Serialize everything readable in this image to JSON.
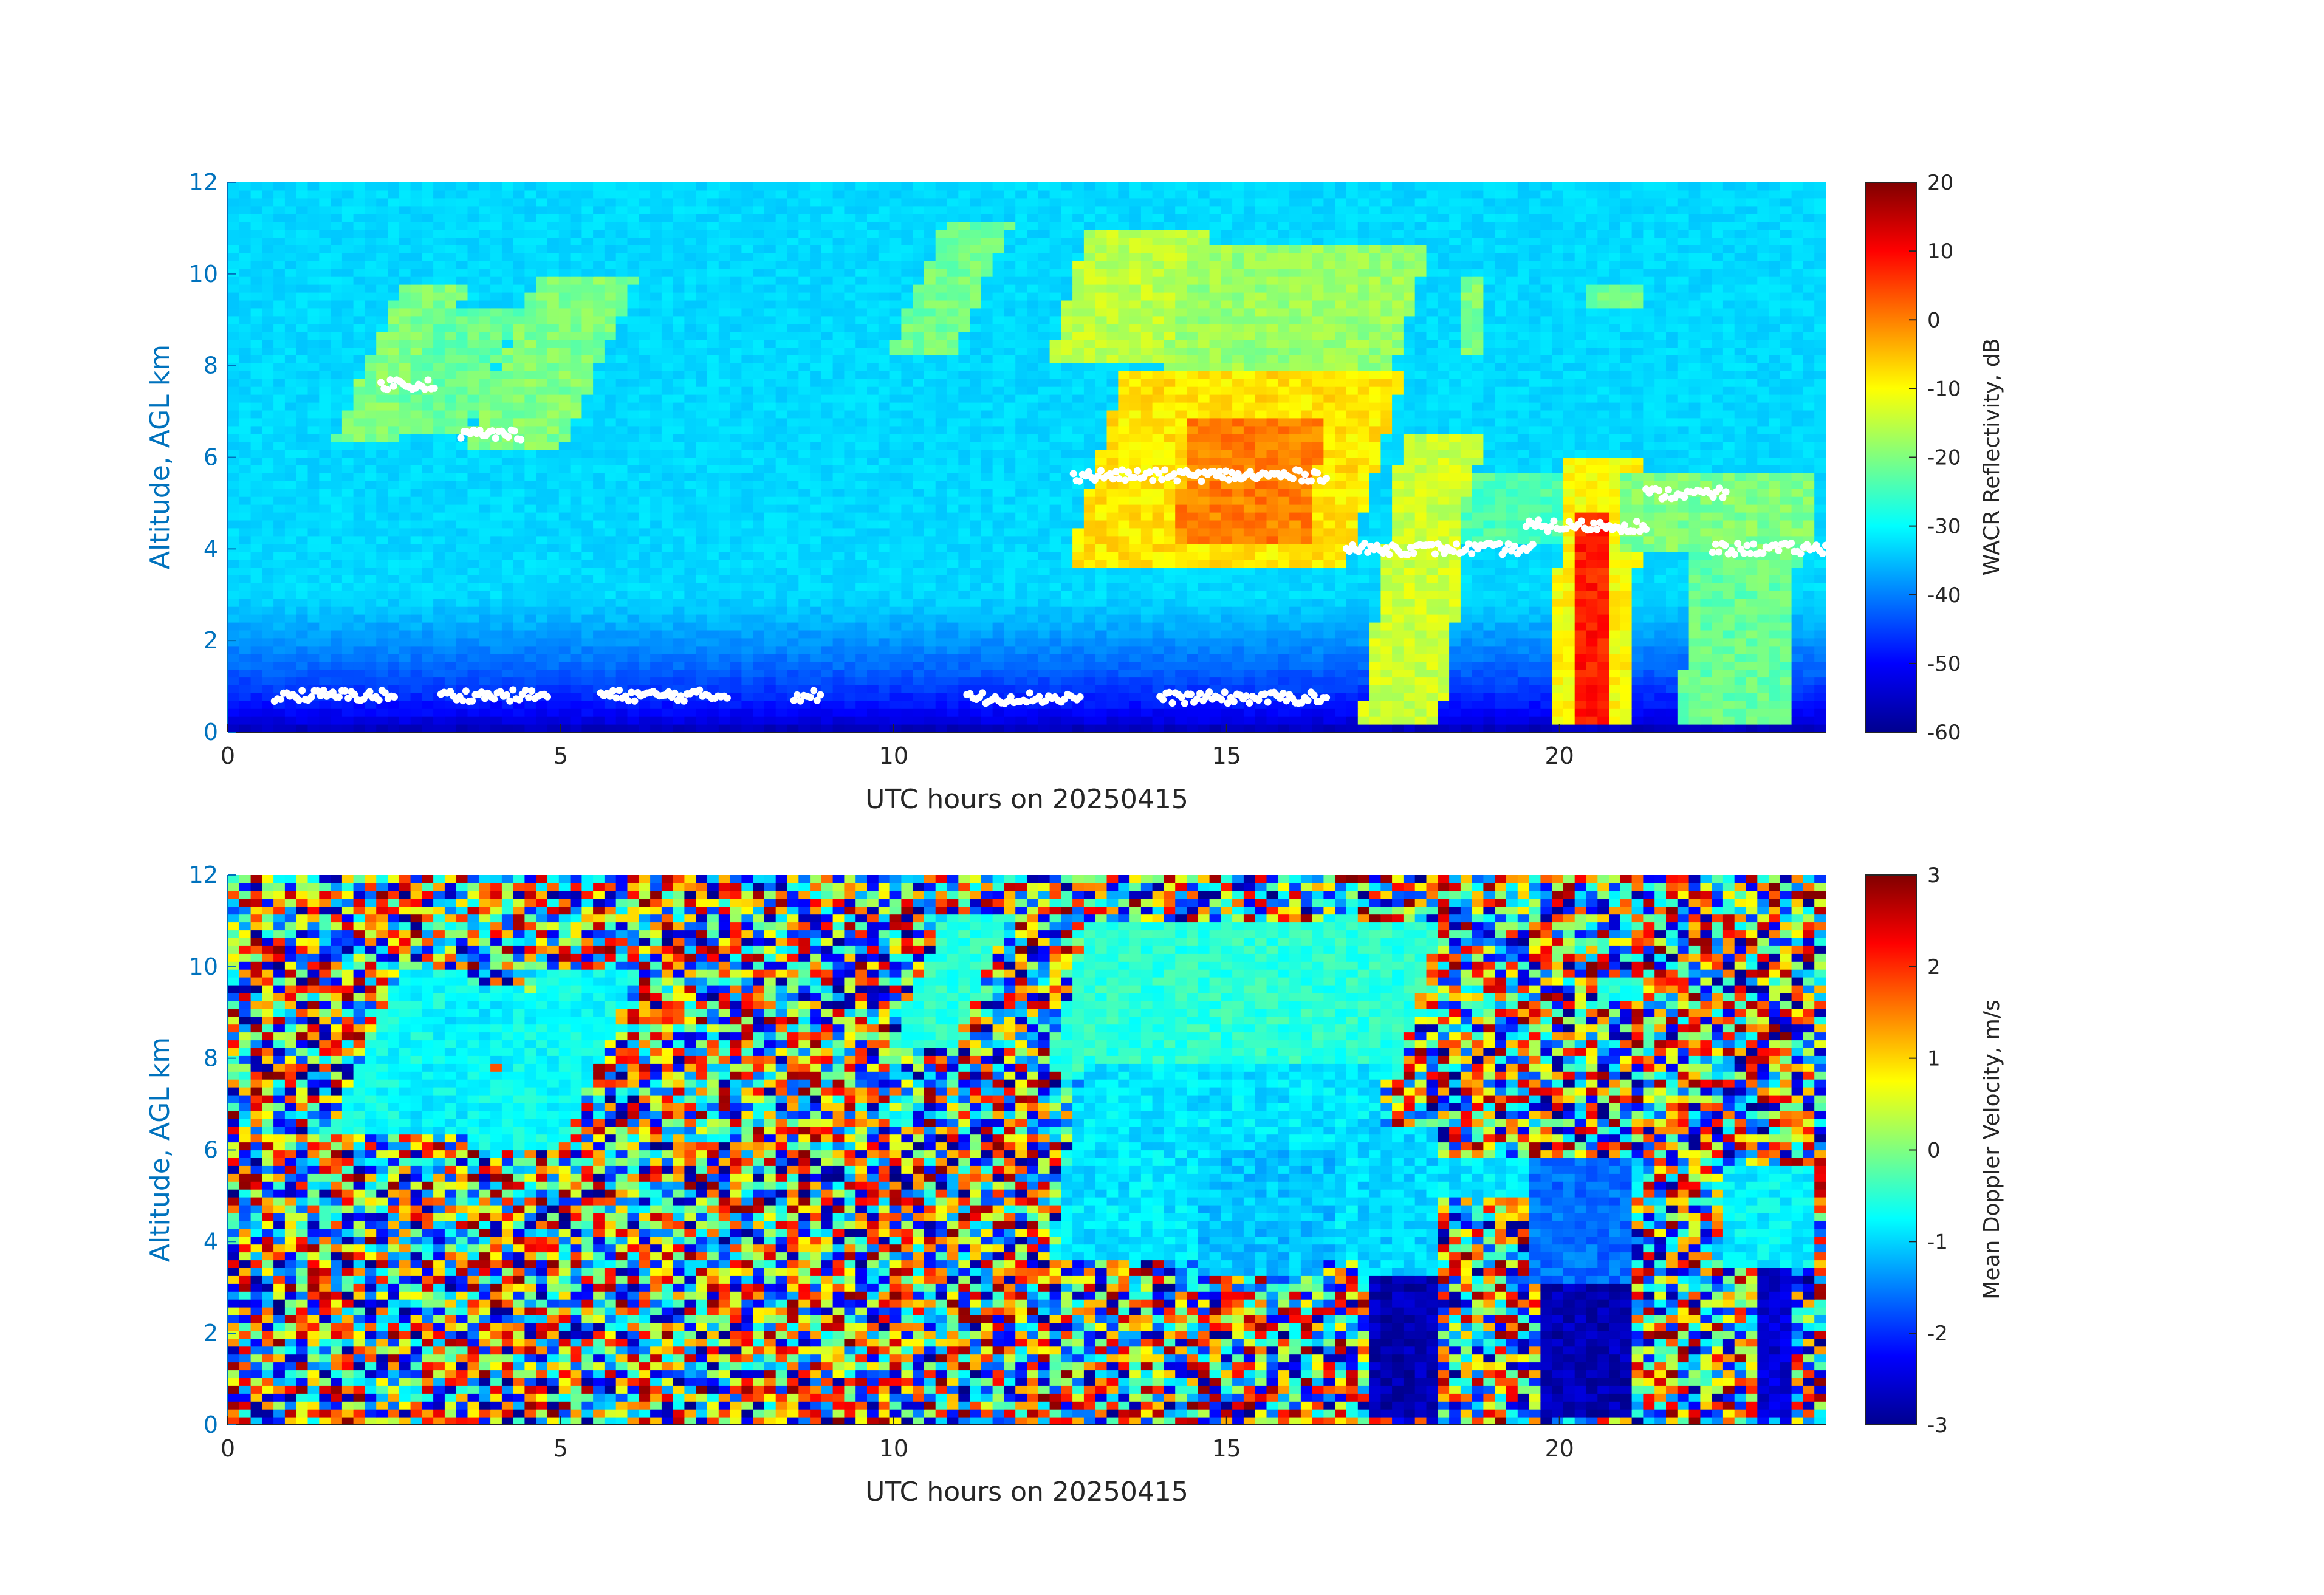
{
  "chart_data": [
    {
      "type": "heatmap",
      "name": "reflectivity",
      "xlabel": "UTC hours on 20250415",
      "ylabel": "Altitude, AGL km",
      "xlim": [
        0,
        24
      ],
      "ylim": [
        0,
        12
      ],
      "xticks": [
        0,
        5,
        10,
        15,
        20
      ],
      "yticks": [
        0,
        2,
        4,
        6,
        8,
        10,
        12
      ],
      "colorbar": {
        "label": "WACR Reflectivity, dB",
        "range": [
          -60,
          20
        ],
        "ticks": [
          20,
          10,
          0,
          -10,
          -20,
          -30,
          -40,
          -50,
          -60
        ],
        "colormap": "jet"
      },
      "background": {
        "surface_value": -58,
        "top_value": -33
      },
      "features": [
        {
          "x0": 1.6,
          "x1": 2.6,
          "y0": 6.4,
          "y1": 9.7,
          "value": -20,
          "slant": 0.3
        },
        {
          "x0": 2.4,
          "x1": 3.6,
          "y0": 6.6,
          "y1": 9.3,
          "value": -22,
          "slant": 0.3
        },
        {
          "x0": 3.5,
          "x1": 5.0,
          "y0": 6.1,
          "y1": 10.0,
          "value": -20,
          "slant": 0.3
        },
        {
          "x0": 9.9,
          "x1": 10.9,
          "y0": 8.2,
          "y1": 11.2,
          "value": -21,
          "slant": 0.3
        },
        {
          "x0": 12.3,
          "x1": 14.2,
          "y0": 8.0,
          "y1": 10.9,
          "value": -15,
          "slant": 0.2
        },
        {
          "x0": 14.0,
          "x1": 17.5,
          "y0": 7.8,
          "y1": 10.6,
          "value": -18,
          "slant": 0.2
        },
        {
          "x0": 12.6,
          "x1": 16.8,
          "y0": 3.6,
          "y1": 7.8,
          "value": -8,
          "slant": 0.2
        },
        {
          "x0": 14.2,
          "x1": 16.2,
          "y0": 4.2,
          "y1": 6.8,
          "value": 0,
          "slant": 0.1
        },
        {
          "x0": 17.0,
          "x1": 18.2,
          "y0": 0.15,
          "y1": 6.5,
          "value": -14,
          "slant": 0.1
        },
        {
          "x0": 18.5,
          "x1": 20.0,
          "y0": 4.2,
          "y1": 5.6,
          "value": -24,
          "slant": 0.1
        },
        {
          "x0": 19.8,
          "x1": 21.0,
          "y0": 0.15,
          "y1": 6.0,
          "value": -10,
          "slant": 0.05
        },
        {
          "x0": 20.3,
          "x1": 20.8,
          "y0": 0.15,
          "y1": 4.8,
          "value": 8,
          "slant": 0.0
        },
        {
          "x0": 21.8,
          "x1": 23.4,
          "y0": 0.2,
          "y1": 5.6,
          "value": -22,
          "slant": 0.05
        },
        {
          "x0": 21.0,
          "x1": 23.9,
          "y0": 4.0,
          "y1": 5.6,
          "value": -20,
          "slant": 0.0
        },
        {
          "x0": 20.4,
          "x1": 21.3,
          "y0": 9.3,
          "y1": 9.8,
          "value": -22,
          "slant": 0.0
        },
        {
          "x0": 18.6,
          "x1": 18.9,
          "y0": 8.2,
          "y1": 10.0,
          "value": -20,
          "slant": 0.0
        }
      ],
      "markers": [
        {
          "x0": 2.3,
          "x1": 3.1,
          "y": 7.6
        },
        {
          "x0": 3.5,
          "x1": 4.4,
          "y": 6.5
        },
        {
          "x0": 12.7,
          "x1": 16.5,
          "y": 5.6
        },
        {
          "x0": 16.8,
          "x1": 19.6,
          "y": 4.0
        },
        {
          "x0": 19.5,
          "x1": 21.3,
          "y": 4.5
        },
        {
          "x0": 21.3,
          "x1": 22.5,
          "y": 5.2
        },
        {
          "x0": 22.3,
          "x1": 24.0,
          "y": 4.0
        },
        {
          "x0": 0.7,
          "x1": 2.5,
          "y": 0.8
        },
        {
          "x0": 3.2,
          "x1": 4.8,
          "y": 0.8
        },
        {
          "x0": 5.6,
          "x1": 7.5,
          "y": 0.8
        },
        {
          "x0": 8.5,
          "x1": 8.9,
          "y": 0.8
        },
        {
          "x0": 11.1,
          "x1": 12.8,
          "y": 0.75
        },
        {
          "x0": 14.0,
          "x1": 16.5,
          "y": 0.75
        }
      ]
    },
    {
      "type": "heatmap",
      "name": "doppler_velocity",
      "xlabel": "UTC hours on 20250415",
      "ylabel": "Altitude, AGL km",
      "xlim": [
        0,
        24
      ],
      "ylim": [
        0,
        12
      ],
      "xticks": [
        0,
        5,
        10,
        15,
        20
      ],
      "yticks": [
        0,
        2,
        4,
        6,
        8,
        10,
        12
      ],
      "colorbar": {
        "label": "Mean Doppler Velocity, m/s",
        "range": [
          -3,
          3
        ],
        "ticks": [
          3,
          2,
          1,
          0,
          -1,
          -2,
          -3
        ],
        "colormap": "jet"
      },
      "background": "noise",
      "features": [
        {
          "x0": 1.5,
          "x1": 2.6,
          "y0": 6.3,
          "y1": 9.9,
          "value": -0.7,
          "slant": 0.3
        },
        {
          "x0": 2.4,
          "x1": 3.6,
          "y0": 6.4,
          "y1": 9.6,
          "value": -0.8,
          "slant": 0.3
        },
        {
          "x0": 3.5,
          "x1": 5.0,
          "y0": 6.0,
          "y1": 10.0,
          "value": -0.7,
          "slant": 0.3
        },
        {
          "x0": 9.9,
          "x1": 10.9,
          "y0": 8.2,
          "y1": 11.2,
          "value": -0.5,
          "slant": 0.3
        },
        {
          "x0": 12.3,
          "x1": 17.6,
          "y0": 7.8,
          "y1": 10.9,
          "value": -0.5,
          "slant": 0.2
        },
        {
          "x0": 12.4,
          "x1": 17.0,
          "y0": 3.6,
          "y1": 7.8,
          "value": -0.9,
          "slant": 0.1
        },
        {
          "x0": 14.5,
          "x1": 16.5,
          "y0": 3.2,
          "y1": 6.0,
          "value": -1.1,
          "slant": 0.1
        },
        {
          "x0": 17.0,
          "x1": 18.2,
          "y0": 3.3,
          "y1": 6.5,
          "value": -1.0,
          "slant": 0.0
        },
        {
          "x0": 17.1,
          "x1": 18.1,
          "y0": 0.15,
          "y1": 3.3,
          "value": -2.7,
          "slant": 0.0
        },
        {
          "x0": 18.2,
          "x1": 21.2,
          "y0": 4.9,
          "y1": 5.8,
          "value": -0.9,
          "slant": 0.0
        },
        {
          "x0": 19.5,
          "x1": 21.0,
          "y0": 3.1,
          "y1": 5.8,
          "value": -1.6,
          "slant": 0.0
        },
        {
          "x0": 19.8,
          "x1": 21.0,
          "y0": 0.15,
          "y1": 3.1,
          "value": -2.7,
          "slant": 0.0
        },
        {
          "x0": 22.5,
          "x1": 23.9,
          "y0": 3.5,
          "y1": 5.6,
          "value": -0.8,
          "slant": 0.0
        },
        {
          "x0": 22.9,
          "x1": 23.4,
          "y0": 0.2,
          "y1": 3.5,
          "value": -2.5,
          "slant": 0.0
        },
        {
          "x0": 20.6,
          "x1": 21.2,
          "y0": 9.3,
          "y1": 9.8,
          "value": -0.6,
          "slant": 0.0
        }
      ]
    }
  ]
}
